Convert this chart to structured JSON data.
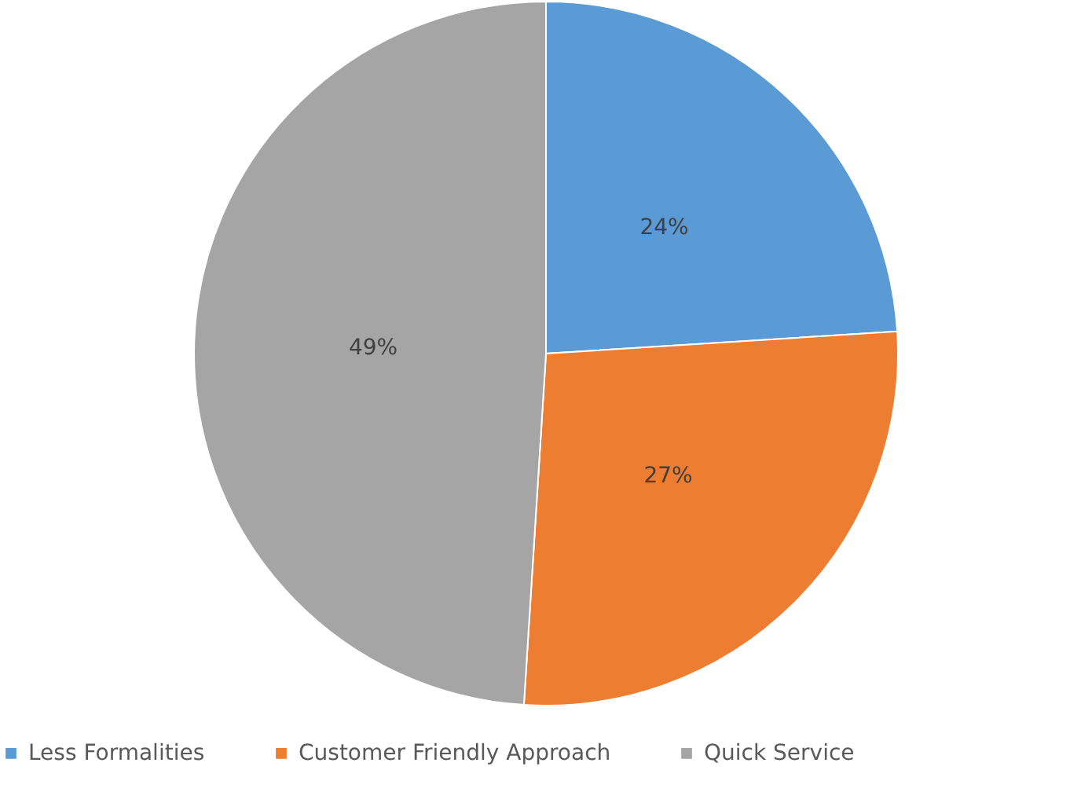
{
  "chart_data": {
    "type": "pie",
    "categories": [
      "Less Formalities",
      "Customer Friendly Approach",
      "Quick Service"
    ],
    "values": [
      24,
      27,
      49
    ],
    "colors": [
      "#5b9bd5",
      "#ed7d31",
      "#a5a5a5"
    ],
    "value_labels": [
      "24%",
      "27%",
      "49%"
    ],
    "legend": "bottom"
  }
}
